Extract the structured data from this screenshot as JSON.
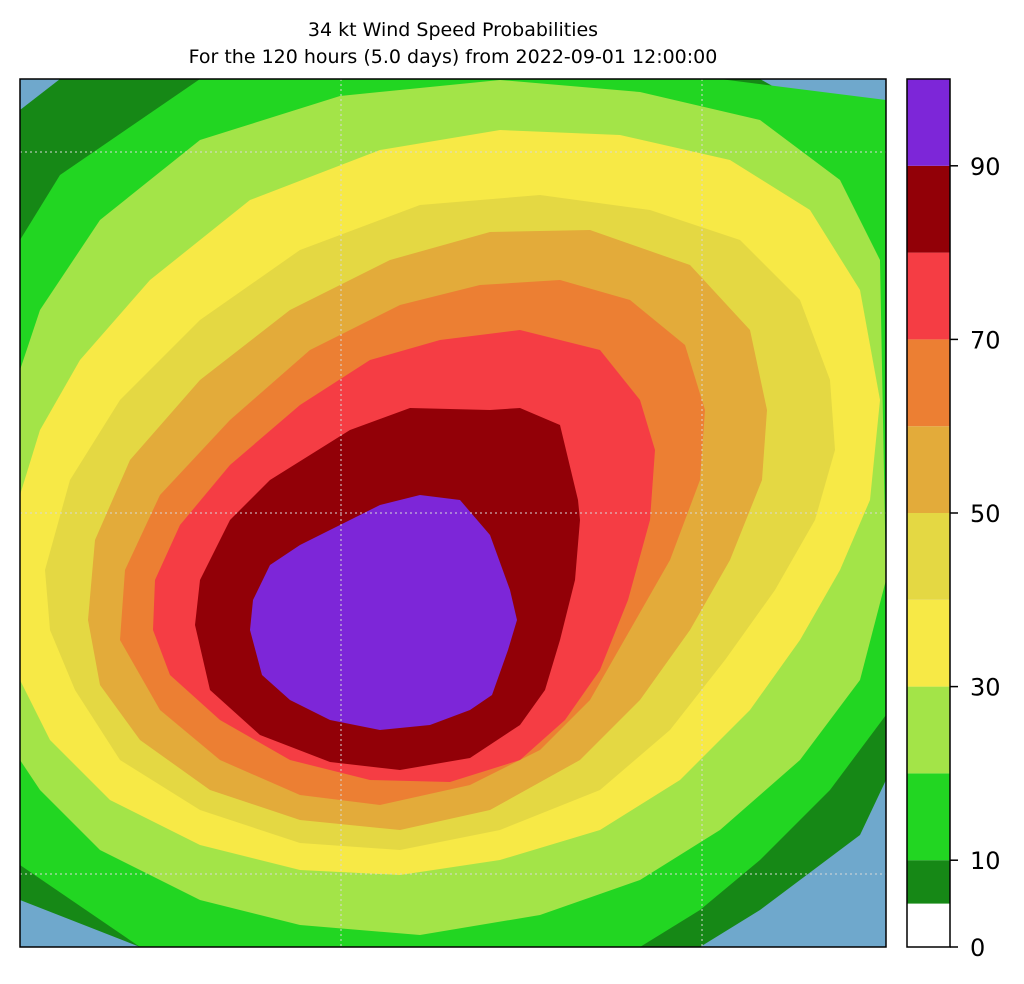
{
  "chart_data": {
    "type": "filled-contour",
    "title": "34 kt Wind Speed Probabilities",
    "subtitle": "For the 120 hours (5.0 days) from 2022-09-01 12:00:00",
    "colorbar": {
      "min": 0,
      "max": 100,
      "tick_labels": [
        "0",
        "10",
        "30",
        "50",
        "70",
        "90"
      ],
      "tick_values": [
        0,
        10,
        30,
        50,
        70,
        90
      ],
      "levels": [
        {
          "from": 0,
          "to": 5,
          "color": "#ffffff"
        },
        {
          "from": 5,
          "to": 10,
          "color": "#168816"
        },
        {
          "from": 10,
          "to": 20,
          "color": "#22d622"
        },
        {
          "from": 20,
          "to": 30,
          "color": "#a3e448"
        },
        {
          "from": 30,
          "to": 40,
          "color": "#f7e946"
        },
        {
          "from": 40,
          "to": 50,
          "color": "#e4d843"
        },
        {
          "from": 50,
          "to": 60,
          "color": "#e3ab3a"
        },
        {
          "from": 60,
          "to": 70,
          "color": "#ec7f33"
        },
        {
          "from": 70,
          "to": 80,
          "color": "#f53d44"
        },
        {
          "from": 80,
          "to": 90,
          "color": "#920007"
        },
        {
          "from": 90,
          "to": 100,
          "color": "#7d26d8"
        }
      ]
    },
    "ocean_color": "#6fa8cc",
    "gridlines": "dotted",
    "max_probability_region": "90-100 percent near center-left of map"
  }
}
